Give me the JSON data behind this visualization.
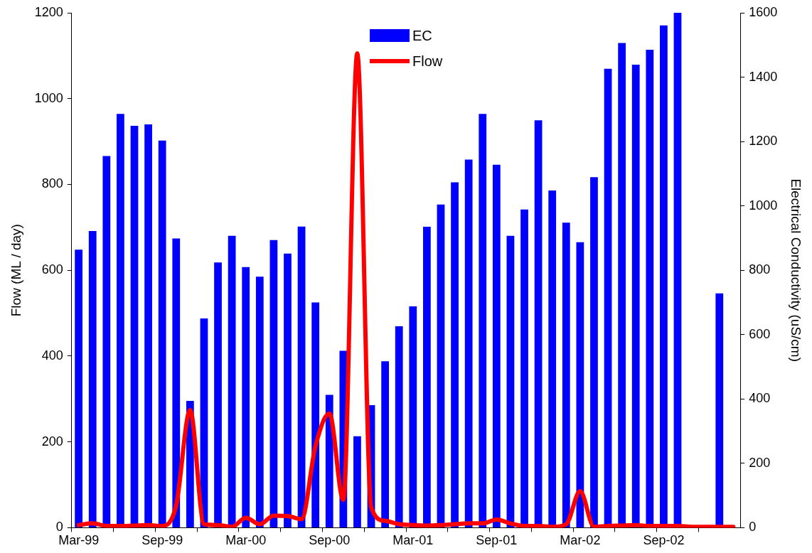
{
  "chart_data": {
    "type": "bar",
    "categories": [
      "Mar-99",
      null,
      null,
      null,
      null,
      null,
      "Sep-99",
      null,
      null,
      null,
      null,
      null,
      "Mar-00",
      null,
      null,
      null,
      null,
      null,
      "Sep-00",
      null,
      null,
      null,
      null,
      null,
      "Mar-01",
      null,
      null,
      null,
      null,
      null,
      "Sep-01",
      null,
      null,
      null,
      null,
      null,
      "Mar-02",
      null,
      null,
      null,
      null,
      null,
      "Sep-02",
      null,
      null,
      null,
      null,
      null
    ],
    "series": [
      {
        "name": "EC",
        "axis": "y2",
        "color": "#0000ff",
        "values": [
          864,
          922,
          1155,
          1286,
          1249,
          1253,
          1203,
          899,
          394,
          650,
          824,
          907,
          810,
          780,
          894,
          852,
          936,
          700,
          413,
          550,
          284,
          381,
          517,
          626,
          688,
          935,
          1004,
          1073,
          1144,
          1286,
          1128,
          907,
          989,
          1266,
          1048,
          948,
          887,
          1089,
          1426,
          1506,
          1439,
          1485,
          1561,
          1600,
          null,
          null,
          728,
          null
        ]
      },
      {
        "name": "Flow",
        "type": "line",
        "color": "#ff0000",
        "values": [
          6,
          10,
          4,
          4,
          5,
          6,
          4,
          52,
          274,
          8,
          6,
          2,
          23,
          8,
          28,
          27,
          20,
          190,
          266,
          65,
          1105,
          48,
          16,
          8,
          6,
          5,
          6,
          8,
          10,
          10,
          19,
          10,
          4,
          4,
          2,
          8,
          85,
          2,
          4,
          5,
          6,
          4,
          4,
          4,
          2,
          2,
          2,
          2
        ]
      }
    ],
    "ylabel": "Flow (ML / day)",
    "y2label": "Electrical Conductivity (uS/cm)",
    "ylim": [
      0,
      1200
    ],
    "yticks": [
      0,
      200,
      400,
      600,
      800,
      1000,
      1200
    ],
    "y2lim": [
      0,
      1600
    ],
    "y2ticks": [
      0,
      200,
      400,
      600,
      800,
      1000,
      1200,
      1400,
      1600
    ],
    "grid": false,
    "legend": "top",
    "marker": "none",
    "line_style": "solid"
  }
}
